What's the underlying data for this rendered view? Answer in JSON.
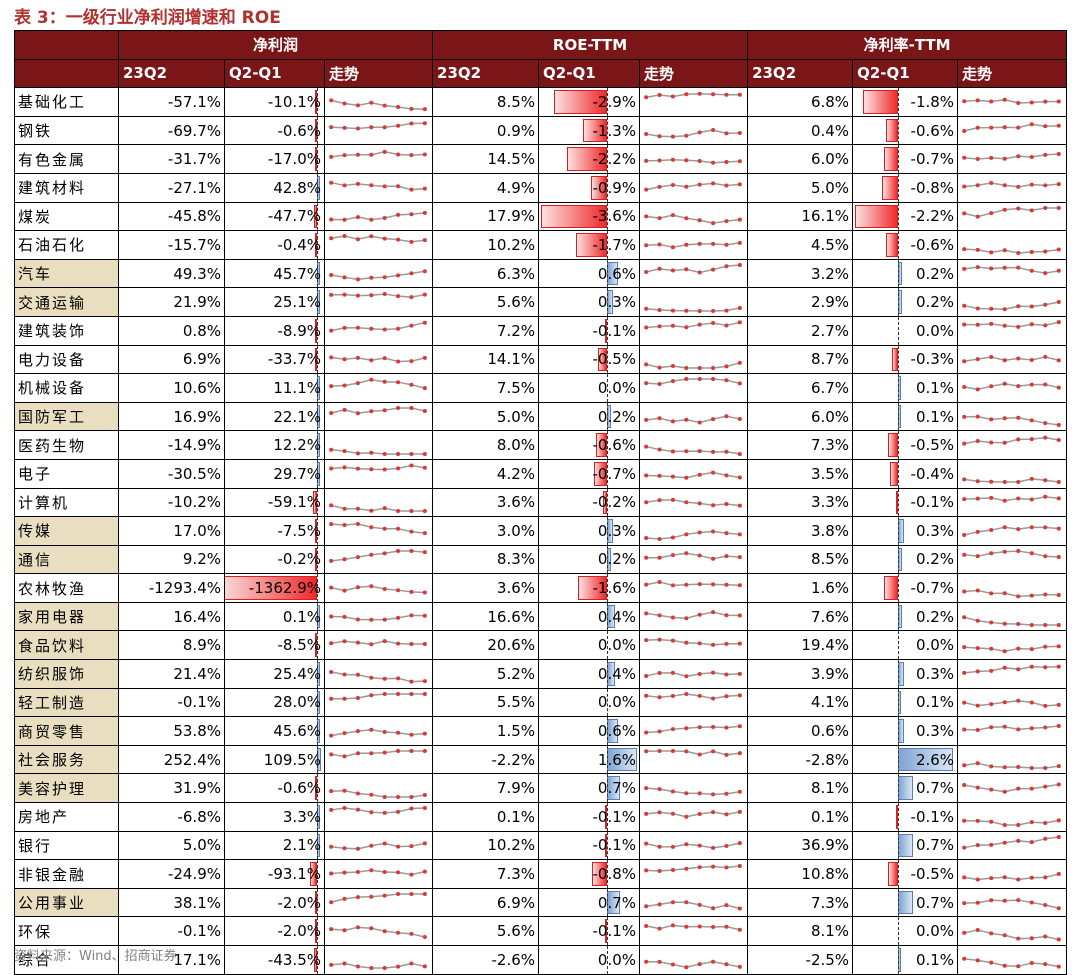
{
  "title": "表 3：一级行业净利润增速和 ROE",
  "source": "资料来源：Wind、招商证券",
  "groups": [
    "净利润",
    "ROE-TTM",
    "净利率-TTM"
  ],
  "subheaders": [
    "23Q2",
    "Q2-Q1",
    "走势"
  ],
  "colors": {
    "header_bg": "#7b1618",
    "highlight": "#e9dfc0",
    "neg_bar": "#ee2a2a",
    "pos_bar": "#7fa4d4",
    "spark_line": "#9a9a9a",
    "spark_dot": "#d83a3a"
  },
  "rows": [
    {
      "name": "基础化工",
      "hl": false,
      "np": "-57.1%",
      "npd": "-10.1%",
      "npdv": -10.1,
      "roe": "8.5%",
      "roed": "-2.9%",
      "roedv": -2.9,
      "nm": "6.8%",
      "nmd": "-1.8%",
      "nmdv": -1.8
    },
    {
      "name": "钢铁",
      "hl": false,
      "np": "-69.7%",
      "npd": "-0.6%",
      "npdv": -0.6,
      "roe": "0.9%",
      "roed": "-1.3%",
      "roedv": -1.3,
      "nm": "0.4%",
      "nmd": "-0.6%",
      "nmdv": -0.6
    },
    {
      "name": "有色金属",
      "hl": false,
      "np": "-31.7%",
      "npd": "-17.0%",
      "npdv": -17.0,
      "roe": "14.5%",
      "roed": "-2.2%",
      "roedv": -2.2,
      "nm": "6.0%",
      "nmd": "-0.7%",
      "nmdv": -0.7
    },
    {
      "name": "建筑材料",
      "hl": false,
      "np": "-27.1%",
      "npd": "42.8%",
      "npdv": 42.8,
      "roe": "4.9%",
      "roed": "-0.9%",
      "roedv": -0.9,
      "nm": "5.0%",
      "nmd": "-0.8%",
      "nmdv": -0.8
    },
    {
      "name": "煤炭",
      "hl": false,
      "np": "-45.8%",
      "npd": "-47.7%",
      "npdv": -47.7,
      "roe": "17.9%",
      "roed": "-3.6%",
      "roedv": -3.6,
      "nm": "16.1%",
      "nmd": "-2.2%",
      "nmdv": -2.2
    },
    {
      "name": "石油石化",
      "hl": false,
      "np": "-15.7%",
      "npd": "-0.4%",
      "npdv": -0.4,
      "roe": "10.2%",
      "roed": "-1.7%",
      "roedv": -1.7,
      "nm": "4.5%",
      "nmd": "-0.6%",
      "nmdv": -0.6
    },
    {
      "name": "汽车",
      "hl": true,
      "np": "49.3%",
      "npd": "45.7%",
      "npdv": 45.7,
      "roe": "6.3%",
      "roed": "0.6%",
      "roedv": 0.6,
      "nm": "3.2%",
      "nmd": "0.2%",
      "nmdv": 0.2
    },
    {
      "name": "交通运输",
      "hl": true,
      "np": "21.9%",
      "npd": "25.1%",
      "npdv": 25.1,
      "roe": "5.6%",
      "roed": "0.3%",
      "roedv": 0.3,
      "nm": "2.9%",
      "nmd": "0.2%",
      "nmdv": 0.2
    },
    {
      "name": "建筑装饰",
      "hl": false,
      "np": "0.8%",
      "npd": "-8.9%",
      "npdv": -8.9,
      "roe": "7.2%",
      "roed": "-0.1%",
      "roedv": -0.1,
      "nm": "2.7%",
      "nmd": "0.0%",
      "nmdv": 0.0
    },
    {
      "name": "电力设备",
      "hl": false,
      "np": "6.9%",
      "npd": "-33.7%",
      "npdv": -33.7,
      "roe": "14.1%",
      "roed": "-0.5%",
      "roedv": -0.5,
      "nm": "8.7%",
      "nmd": "-0.3%",
      "nmdv": -0.3
    },
    {
      "name": "机械设备",
      "hl": false,
      "np": "10.6%",
      "npd": "11.1%",
      "npdv": 11.1,
      "roe": "7.5%",
      "roed": "0.0%",
      "roedv": 0.0,
      "nm": "6.7%",
      "nmd": "0.1%",
      "nmdv": 0.1
    },
    {
      "name": "国防军工",
      "hl": true,
      "np": "16.9%",
      "npd": "22.1%",
      "npdv": 22.1,
      "roe": "5.0%",
      "roed": "0.2%",
      "roedv": 0.2,
      "nm": "6.0%",
      "nmd": "0.1%",
      "nmdv": 0.1
    },
    {
      "name": "医药生物",
      "hl": false,
      "np": "-14.9%",
      "npd": "12.2%",
      "npdv": 12.2,
      "roe": "8.0%",
      "roed": "-0.6%",
      "roedv": -0.6,
      "nm": "7.3%",
      "nmd": "-0.5%",
      "nmdv": -0.5
    },
    {
      "name": "电子",
      "hl": false,
      "np": "-30.5%",
      "npd": "29.7%",
      "npdv": 29.7,
      "roe": "4.2%",
      "roed": "-0.7%",
      "roedv": -0.7,
      "nm": "3.5%",
      "nmd": "-0.4%",
      "nmdv": -0.4
    },
    {
      "name": "计算机",
      "hl": false,
      "np": "-10.2%",
      "npd": "-59.1%",
      "npdv": -59.1,
      "roe": "3.6%",
      "roed": "-0.2%",
      "roedv": -0.2,
      "nm": "3.3%",
      "nmd": "-0.1%",
      "nmdv": -0.1
    },
    {
      "name": "传媒",
      "hl": true,
      "np": "17.0%",
      "npd": "-7.5%",
      "npdv": -7.5,
      "roe": "3.0%",
      "roed": "0.3%",
      "roedv": 0.3,
      "nm": "3.8%",
      "nmd": "0.3%",
      "nmdv": 0.3
    },
    {
      "name": "通信",
      "hl": true,
      "np": "9.2%",
      "npd": "-0.2%",
      "npdv": -0.2,
      "roe": "8.3%",
      "roed": "0.2%",
      "roedv": 0.2,
      "nm": "8.5%",
      "nmd": "0.2%",
      "nmdv": 0.2
    },
    {
      "name": "农林牧渔",
      "hl": false,
      "np": "-1293.4%",
      "npd": "-1362.9%",
      "npdv": -1362.9,
      "roe": "3.6%",
      "roed": "-1.6%",
      "roedv": -1.6,
      "nm": "1.6%",
      "nmd": "-0.7%",
      "nmdv": -0.7
    },
    {
      "name": "家用电器",
      "hl": true,
      "np": "16.4%",
      "npd": "0.1%",
      "npdv": 0.1,
      "roe": "16.6%",
      "roed": "0.4%",
      "roedv": 0.4,
      "nm": "7.6%",
      "nmd": "0.2%",
      "nmdv": 0.2
    },
    {
      "name": "食品饮料",
      "hl": true,
      "np": "8.9%",
      "npd": "-8.5%",
      "npdv": -8.5,
      "roe": "20.6%",
      "roed": "0.0%",
      "roedv": 0.0,
      "nm": "19.4%",
      "nmd": "0.0%",
      "nmdv": 0.0
    },
    {
      "name": "纺织服饰",
      "hl": true,
      "np": "21.4%",
      "npd": "25.4%",
      "npdv": 25.4,
      "roe": "5.2%",
      "roed": "0.4%",
      "roedv": 0.4,
      "nm": "3.9%",
      "nmd": "0.3%",
      "nmdv": 0.3
    },
    {
      "name": "轻工制造",
      "hl": true,
      "np": "-0.1%",
      "npd": "28.0%",
      "npdv": 28.0,
      "roe": "5.5%",
      "roed": "0.0%",
      "roedv": 0.0,
      "nm": "4.1%",
      "nmd": "0.1%",
      "nmdv": 0.1
    },
    {
      "name": "商贸零售",
      "hl": true,
      "np": "53.8%",
      "npd": "45.6%",
      "npdv": 45.6,
      "roe": "1.5%",
      "roed": "0.6%",
      "roedv": 0.6,
      "nm": "0.6%",
      "nmd": "0.3%",
      "nmdv": 0.3
    },
    {
      "name": "社会服务",
      "hl": true,
      "np": "252.4%",
      "npd": "109.5%",
      "npdv": 109.5,
      "roe": "-2.2%",
      "roed": "1.6%",
      "roedv": 1.6,
      "nm": "-2.8%",
      "nmd": "2.6%",
      "nmdv": 2.6
    },
    {
      "name": "美容护理",
      "hl": true,
      "np": "31.9%",
      "npd": "-0.6%",
      "npdv": -0.6,
      "roe": "7.9%",
      "roed": "0.7%",
      "roedv": 0.7,
      "nm": "8.1%",
      "nmd": "0.7%",
      "nmdv": 0.7
    },
    {
      "name": "房地产",
      "hl": false,
      "np": "-6.8%",
      "npd": "3.3%",
      "npdv": 3.3,
      "roe": "0.1%",
      "roed": "-0.1%",
      "roedv": -0.1,
      "nm": "0.1%",
      "nmd": "-0.1%",
      "nmdv": -0.1
    },
    {
      "name": "银行",
      "hl": false,
      "np": "5.0%",
      "npd": "2.1%",
      "npdv": 2.1,
      "roe": "10.2%",
      "roed": "-0.1%",
      "roedv": -0.1,
      "nm": "36.9%",
      "nmd": "0.7%",
      "nmdv": 0.7
    },
    {
      "name": "非银金融",
      "hl": false,
      "np": "-24.9%",
      "npd": "-93.1%",
      "npdv": -93.1,
      "roe": "7.3%",
      "roed": "-0.8%",
      "roedv": -0.8,
      "nm": "10.8%",
      "nmd": "-0.5%",
      "nmdv": -0.5
    },
    {
      "name": "公用事业",
      "hl": true,
      "np": "38.1%",
      "npd": "-2.0%",
      "npdv": -2.0,
      "roe": "6.9%",
      "roed": "0.7%",
      "roedv": 0.7,
      "nm": "7.3%",
      "nmd": "0.7%",
      "nmdv": 0.7
    },
    {
      "name": "环保",
      "hl": false,
      "np": "-0.1%",
      "npd": "-2.0%",
      "npdv": -2.0,
      "roe": "5.6%",
      "roed": "-0.1%",
      "roedv": -0.1,
      "nm": "8.1%",
      "nmd": "0.0%",
      "nmdv": 0.0
    },
    {
      "name": "综合",
      "hl": false,
      "np": "17.1%",
      "npd": "-43.5%",
      "npdv": -43.5,
      "roe": "-2.6%",
      "roed": "0.0%",
      "roedv": 0.0,
      "nm": "-2.5%",
      "nmd": "0.1%",
      "nmdv": 0.1
    }
  ]
}
